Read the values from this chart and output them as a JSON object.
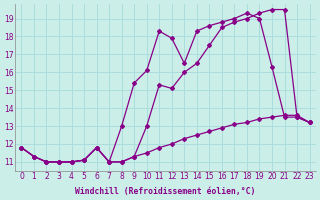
{
  "title": "",
  "xlabel": "Windchill (Refroidissement éolien,°C)",
  "ylabel": "",
  "background_color": "#cceee8",
  "line_color": "#880088",
  "grid_color": "#aadddd",
  "x_min": -0.5,
  "x_max": 23.5,
  "y_min": 10.5,
  "y_max": 19.8,
  "yticks": [
    11,
    12,
    13,
    14,
    15,
    16,
    17,
    18,
    19
  ],
  "xticks": [
    0,
    1,
    2,
    3,
    4,
    5,
    6,
    7,
    8,
    9,
    10,
    11,
    12,
    13,
    14,
    15,
    16,
    17,
    18,
    19,
    20,
    21,
    22,
    23
  ],
  "series1_x": [
    0,
    1,
    2,
    3,
    4,
    5,
    6,
    7,
    8,
    9,
    10,
    11,
    12,
    13,
    14,
    15,
    16,
    17,
    18,
    19,
    20,
    21,
    22,
    23
  ],
  "series1_y": [
    11.8,
    11.3,
    11.0,
    11.0,
    11.0,
    11.1,
    11.8,
    11.0,
    11.0,
    11.3,
    11.5,
    11.8,
    12.0,
    12.3,
    12.5,
    12.7,
    12.9,
    13.1,
    13.2,
    13.4,
    13.5,
    13.6,
    13.6,
    13.2
  ],
  "series2_x": [
    0,
    1,
    2,
    3,
    4,
    5,
    6,
    7,
    8,
    9,
    10,
    11,
    12,
    13,
    14,
    15,
    16,
    17,
    18,
    19,
    20,
    21,
    22,
    23
  ],
  "series2_y": [
    11.8,
    11.3,
    11.0,
    11.0,
    11.0,
    11.1,
    11.8,
    11.0,
    11.0,
    11.3,
    13.0,
    15.3,
    15.1,
    16.0,
    16.5,
    17.5,
    18.5,
    18.8,
    19.0,
    19.3,
    19.5,
    19.5,
    13.5,
    13.2
  ],
  "series3_x": [
    0,
    1,
    2,
    3,
    4,
    5,
    6,
    7,
    8,
    9,
    10,
    11,
    12,
    13,
    14,
    15,
    16,
    17,
    18,
    19,
    20,
    21,
    22,
    23
  ],
  "series3_y": [
    11.8,
    11.3,
    11.0,
    11.0,
    11.0,
    11.1,
    11.8,
    11.0,
    13.0,
    15.4,
    16.1,
    18.3,
    17.9,
    16.5,
    18.3,
    18.6,
    18.8,
    19.0,
    19.3,
    19.0,
    16.3,
    13.5,
    13.5,
    13.2
  ]
}
